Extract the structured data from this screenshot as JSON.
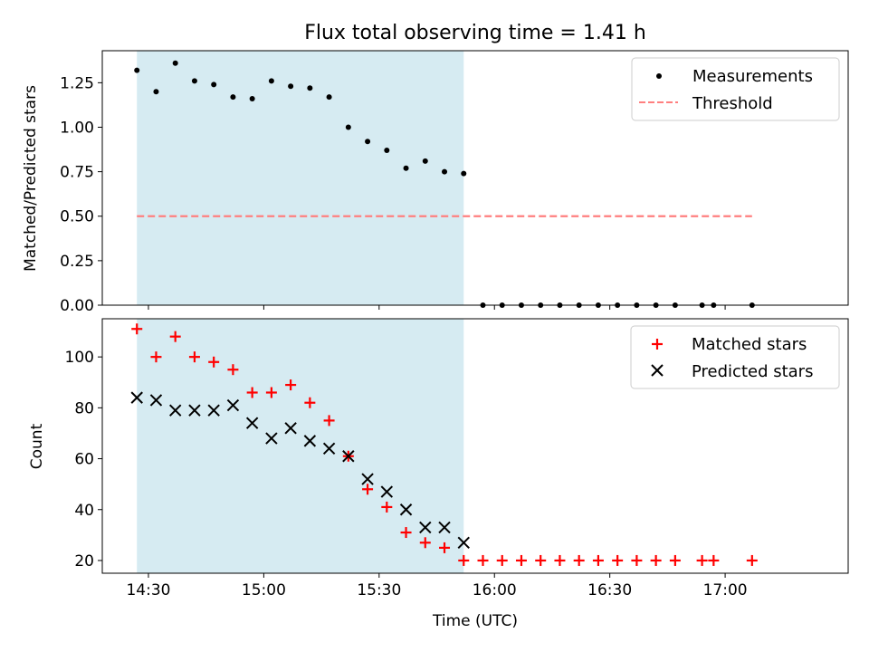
{
  "title": "Flux total observing time = 1.41 h",
  "chart_data": [
    {
      "type": "scatter",
      "ylabel": "Matched/Predicted stars",
      "ylim": [
        0,
        1.43
      ],
      "yticks": [
        0.0,
        0.25,
        0.5,
        0.75,
        1.0,
        1.25
      ],
      "ytick_labels": [
        "0.00",
        "0.25",
        "0.50",
        "0.75",
        "1.00",
        "1.25"
      ],
      "legend_position": "top-right",
      "shaded_interval": {
        "start": "14:27",
        "end": "15:52",
        "color": "#add8e6"
      },
      "series": [
        {
          "name": "Measurements",
          "marker": "dot",
          "color": "#000000",
          "x": [
            "14:27",
            "14:32",
            "14:37",
            "14:42",
            "14:47",
            "14:52",
            "14:57",
            "15:02",
            "15:07",
            "15:12",
            "15:17",
            "15:22",
            "15:27",
            "15:32",
            "15:37",
            "15:42",
            "15:47",
            "15:52",
            "15:57",
            "16:02",
            "16:07",
            "16:12",
            "16:17",
            "16:22",
            "16:27",
            "16:32",
            "16:37",
            "16:42",
            "16:47",
            "16:54",
            "16:57",
            "17:07"
          ],
          "values": [
            1.32,
            1.2,
            1.36,
            1.26,
            1.24,
            1.17,
            1.16,
            1.26,
            1.23,
            1.22,
            1.17,
            1.0,
            0.92,
            0.87,
            0.77,
            0.81,
            0.75,
            0.74,
            0,
            0,
            0,
            0,
            0,
            0,
            0,
            0,
            0,
            0,
            0,
            0,
            0,
            0
          ]
        },
        {
          "name": "Threshold",
          "marker": "dashed-line",
          "color": "#ff7f7f",
          "x": [
            "14:27",
            "17:07"
          ],
          "values": [
            0.5,
            0.5
          ]
        }
      ]
    },
    {
      "type": "scatter",
      "xlabel": "Time (UTC)",
      "ylabel": "Count",
      "ylim": [
        15,
        115
      ],
      "yticks": [
        20,
        40,
        60,
        80,
        100
      ],
      "xlim": [
        "14:18",
        "17:32"
      ],
      "xticks": [
        "14:30",
        "15:00",
        "15:30",
        "16:00",
        "16:30",
        "17:00"
      ],
      "legend_position": "top-right",
      "shaded_interval": {
        "start": "14:27",
        "end": "15:52",
        "color": "#add8e6"
      },
      "series": [
        {
          "name": "Matched stars",
          "marker": "plus",
          "color": "#ff0000",
          "x": [
            "14:27",
            "14:32",
            "14:37",
            "14:42",
            "14:47",
            "14:52",
            "14:57",
            "15:02",
            "15:07",
            "15:12",
            "15:17",
            "15:22",
            "15:27",
            "15:32",
            "15:37",
            "15:42",
            "15:47",
            "15:52",
            "15:57",
            "16:02",
            "16:07",
            "16:12",
            "16:17",
            "16:22",
            "16:27",
            "16:32",
            "16:37",
            "16:42",
            "16:47",
            "16:54",
            "16:57",
            "17:07"
          ],
          "values": [
            111,
            100,
            108,
            100,
            98,
            95,
            86,
            86,
            89,
            82,
            75,
            61,
            48,
            41,
            31,
            27,
            25,
            20,
            20,
            20,
            20,
            20,
            20,
            20,
            20,
            20,
            20,
            20,
            20,
            20,
            20,
            20
          ]
        },
        {
          "name": "Predicted stars",
          "marker": "x",
          "color": "#000000",
          "x": [
            "14:27",
            "14:32",
            "14:37",
            "14:42",
            "14:47",
            "14:52",
            "14:57",
            "15:02",
            "15:07",
            "15:12",
            "15:17",
            "15:22",
            "15:27",
            "15:32",
            "15:37",
            "15:42",
            "15:47",
            "15:52"
          ],
          "values": [
            84,
            83,
            79,
            79,
            79,
            81,
            74,
            68,
            72,
            67,
            64,
            61,
            52,
            47,
            40,
            33,
            33,
            27
          ]
        }
      ]
    }
  ]
}
